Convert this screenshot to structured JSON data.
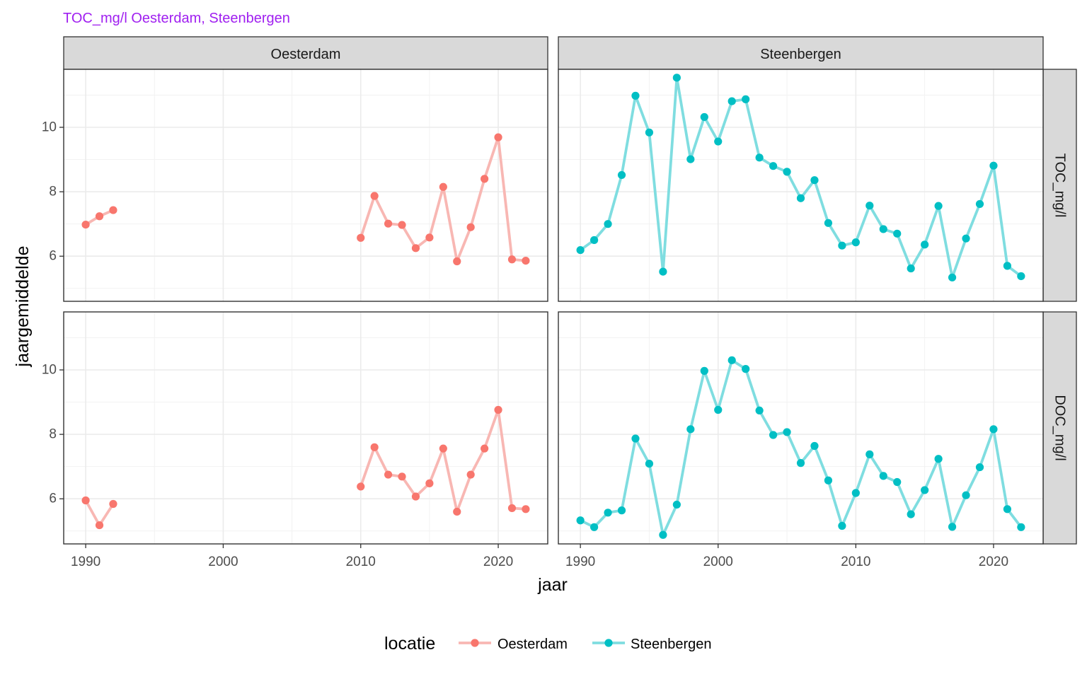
{
  "chart_data": {
    "type": "line",
    "title": "TOC_mg/l Oesterdam, Steenbergen",
    "xlabel": "jaar",
    "ylabel": "jaargemiddelde",
    "xlim": [
      1988.4,
      2023.6
    ],
    "ylim": [
      4.6,
      11.8
    ],
    "x_ticks": [
      1990,
      2000,
      2010,
      2020
    ],
    "y_ticks": [
      6,
      8,
      10
    ],
    "grid": true,
    "legend_position": "bottom",
    "legend_title": "locatie",
    "columns": [
      "Oesterdam",
      "Steenbergen"
    ],
    "rows": [
      "TOC_mg/l",
      "DOC_mg/l"
    ],
    "colors": {
      "Oesterdam": {
        "point": "#F8766D",
        "line": "#F8B7B3"
      },
      "Steenbergen": {
        "point": "#00BFC4",
        "line": "#7FDDE0"
      }
    },
    "legend": [
      {
        "name": "Oesterdam"
      },
      {
        "name": "Steenbergen"
      }
    ],
    "panels": [
      {
        "row": "TOC_mg/l",
        "location": "Oesterdam",
        "segments": [
          {
            "x": [
              1990,
              1991,
              1992
            ],
            "y": [
              6.98,
              7.24,
              7.43
            ]
          },
          {
            "x": [
              2010,
              2011,
              2012,
              2013,
              2014,
              2015,
              2016,
              2017,
              2018,
              2019,
              2020,
              2021,
              2022
            ],
            "y": [
              6.57,
              7.87,
              7.01,
              6.97,
              6.25,
              6.58,
              8.15,
              5.84,
              6.9,
              8.4,
              9.69,
              5.9,
              5.86
            ]
          }
        ]
      },
      {
        "row": "TOC_mg/l",
        "location": "Steenbergen",
        "segments": [
          {
            "x": [
              1990,
              1991,
              1992,
              1993,
              1994,
              1995,
              1996,
              1997,
              1998,
              1999,
              2000,
              2001,
              2002,
              2003,
              2004,
              2005,
              2006,
              2007,
              2008,
              2009,
              2010,
              2011,
              2012,
              2013,
              2014,
              2015,
              2016,
              2017,
              2018,
              2019,
              2020,
              2021,
              2022
            ],
            "y": [
              6.19,
              6.5,
              7.0,
              8.52,
              10.98,
              9.84,
              5.52,
              11.54,
              9.01,
              10.32,
              9.56,
              10.81,
              10.87,
              9.06,
              8.8,
              8.62,
              7.8,
              8.36,
              7.03,
              6.33,
              6.43,
              7.57,
              6.84,
              6.7,
              5.62,
              6.36,
              7.56,
              5.34,
              6.55,
              7.62,
              8.81,
              5.7,
              5.38
            ]
          }
        ]
      },
      {
        "row": "DOC_mg/l",
        "location": "Oesterdam",
        "segments": [
          {
            "x": [
              1990,
              1991,
              1992
            ],
            "y": [
              5.95,
              5.18,
              5.84
            ]
          },
          {
            "x": [
              2010,
              2011,
              2012,
              2013,
              2014,
              2015,
              2016,
              2017,
              2018,
              2019,
              2020,
              2021,
              2022
            ],
            "y": [
              6.38,
              7.6,
              6.75,
              6.69,
              6.07,
              6.48,
              7.56,
              5.6,
              6.75,
              7.56,
              8.76,
              5.71,
              5.68
            ]
          }
        ]
      },
      {
        "row": "DOC_mg/l",
        "location": "Steenbergen",
        "segments": [
          {
            "x": [
              1990,
              1991,
              1992,
              1993,
              1994,
              1995,
              1996,
              1997,
              1998,
              1999,
              2000,
              2001,
              2002,
              2003,
              2004,
              2005,
              2006,
              2007,
              2008,
              2009,
              2010,
              2011,
              2012,
              2013,
              2014,
              2015,
              2016,
              2017,
              2018,
              2019,
              2020,
              2021,
              2022
            ],
            "y": [
              5.33,
              5.12,
              5.57,
              5.64,
              7.87,
              7.09,
              4.88,
              5.82,
              8.16,
              9.97,
              8.76,
              10.3,
              10.03,
              8.74,
              7.98,
              8.07,
              7.11,
              7.64,
              6.57,
              5.16,
              6.18,
              7.38,
              6.71,
              6.52,
              5.52,
              6.27,
              7.24,
              5.13,
              6.11,
              6.98,
              8.16,
              5.68,
              5.12
            ]
          }
        ]
      }
    ]
  }
}
